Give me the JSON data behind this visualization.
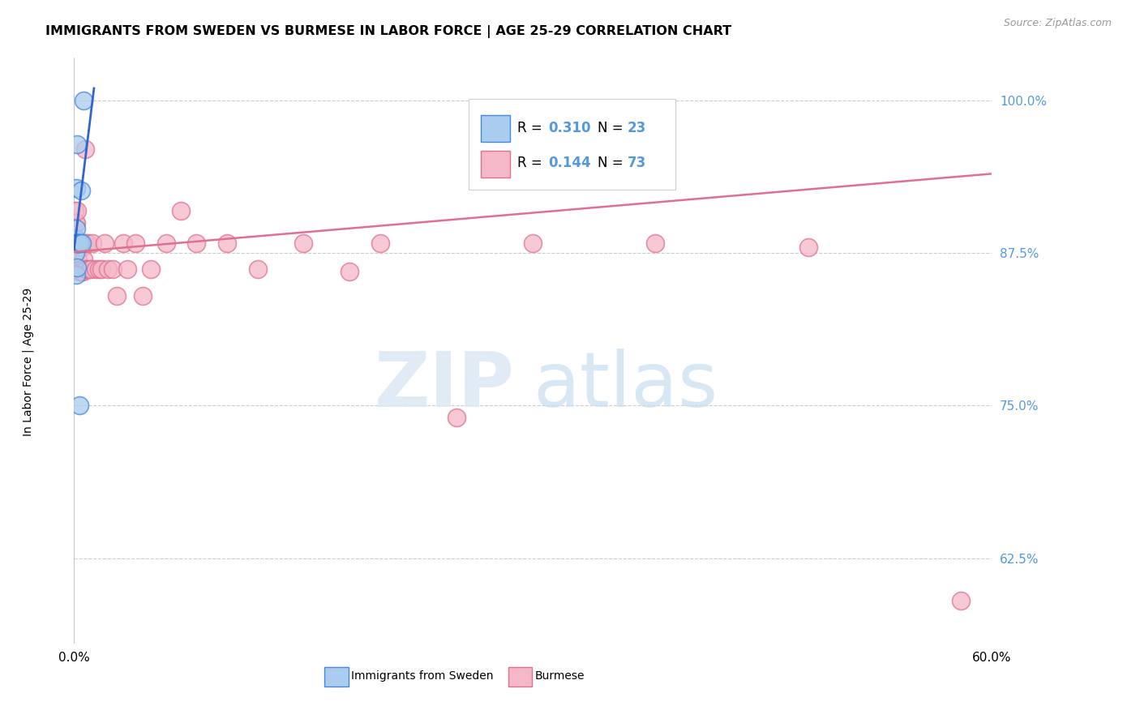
{
  "title": "IMMIGRANTS FROM SWEDEN VS BURMESE IN LABOR FORCE | AGE 25-29 CORRELATION CHART",
  "source": "Source: ZipAtlas.com",
  "ylabel": "In Labor Force | Age 25-29",
  "watermark_zip": "ZIP",
  "watermark_atlas": "atlas",
  "legend_sweden_R": "0.310",
  "legend_sweden_N": "23",
  "legend_burmese_R": "0.144",
  "legend_burmese_N": "73",
  "sweden_fill": "#aaccee",
  "sweden_edge": "#4488dd",
  "burmese_fill": "#f5b8c8",
  "burmese_edge": "#e07090",
  "sweden_line_color": "#3366cc",
  "burmese_line_color": "#e07090",
  "axis_color": "#5599dd",
  "grid_color": "#cccccc",
  "bg_color": "#ffffff",
  "sweden_x": [
    0.0005,
    0.0006,
    0.0007,
    0.0008,
    0.0009,
    0.001,
    0.0011,
    0.0012,
    0.0013,
    0.0014,
    0.0015,
    0.0016,
    0.0018,
    0.002,
    0.0022,
    0.0025,
    0.0028,
    0.0032,
    0.0036,
    0.004,
    0.0045,
    0.005,
    0.006
  ],
  "sweden_y": [
    0.883,
    0.884,
    0.885,
    0.886,
    0.887,
    0.883,
    0.875,
    0.895,
    0.857,
    0.883,
    0.883,
    0.928,
    0.863,
    0.964,
    0.883,
    0.883,
    0.883,
    0.883,
    0.75,
    0.883,
    0.926,
    0.883,
    1.0
  ],
  "burmese_x": [
    0.0003,
    0.0004,
    0.0005,
    0.0006,
    0.0007,
    0.0008,
    0.0009,
    0.001,
    0.0011,
    0.0012,
    0.0013,
    0.0014,
    0.0015,
    0.0016,
    0.0017,
    0.0018,
    0.0019,
    0.002,
    0.0021,
    0.0022,
    0.0023,
    0.0024,
    0.0025,
    0.0026,
    0.0027,
    0.0028,
    0.003,
    0.0032,
    0.0034,
    0.0036,
    0.0038,
    0.004,
    0.0042,
    0.0044,
    0.0046,
    0.0048,
    0.005,
    0.0055,
    0.006,
    0.0065,
    0.007,
    0.0075,
    0.008,
    0.0085,
    0.009,
    0.01,
    0.011,
    0.012,
    0.014,
    0.016,
    0.018,
    0.02,
    0.022,
    0.025,
    0.028,
    0.032,
    0.035,
    0.04,
    0.045,
    0.05,
    0.06,
    0.07,
    0.08,
    0.1,
    0.12,
    0.15,
    0.18,
    0.2,
    0.25,
    0.3,
    0.38,
    0.48,
    0.58
  ],
  "burmese_y": [
    0.883,
    0.91,
    0.883,
    0.9,
    0.883,
    0.883,
    0.862,
    0.883,
    0.883,
    0.862,
    0.883,
    0.9,
    0.883,
    0.862,
    0.883,
    0.883,
    0.862,
    0.91,
    0.883,
    0.862,
    0.883,
    0.883,
    0.87,
    0.883,
    0.862,
    0.883,
    0.883,
    0.862,
    0.883,
    0.86,
    0.883,
    0.862,
    0.883,
    0.86,
    0.88,
    0.86,
    0.88,
    0.86,
    0.87,
    0.883,
    0.96,
    0.883,
    0.862,
    0.862,
    0.883,
    0.862,
    0.862,
    0.883,
    0.862,
    0.862,
    0.862,
    0.883,
    0.862,
    0.862,
    0.84,
    0.883,
    0.862,
    0.883,
    0.84,
    0.862,
    0.883,
    0.91,
    0.883,
    0.883,
    0.862,
    0.883,
    0.86,
    0.883,
    0.74,
    0.883,
    0.883,
    0.88,
    0.59
  ],
  "xlim": [
    0.0,
    0.6
  ],
  "ylim": [
    0.555,
    1.035
  ],
  "yticks": [
    0.625,
    0.75,
    0.875,
    1.0
  ],
  "ytick_labels": [
    "62.5%",
    "75.0%",
    "87.5%",
    "100.0%"
  ],
  "xtick_labels": [
    "0.0%",
    "60.0%"
  ]
}
